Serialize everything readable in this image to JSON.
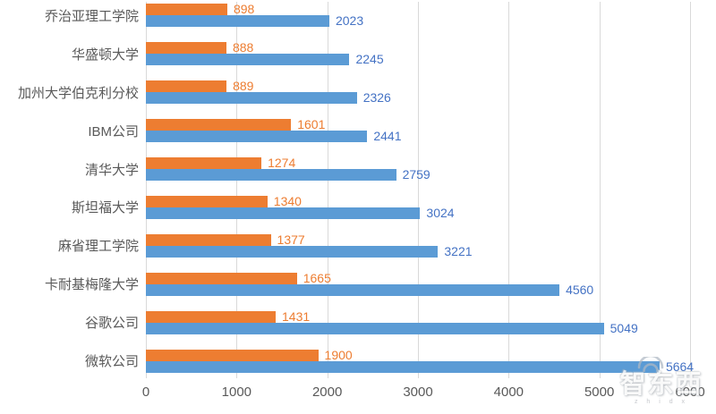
{
  "chart_data": {
    "type": "bar",
    "orientation": "horizontal",
    "title": "",
    "xlabel": "",
    "ylabel": "",
    "xlim": [
      0,
      6000
    ],
    "x_ticks": [
      "0",
      "1000",
      "2000",
      "3000",
      "4000",
      "5000",
      "6000"
    ],
    "grid": "vertical",
    "legend": "none",
    "categories": [
      "乔治亚理工学院",
      "华盛顿大学",
      "加州大学伯克利分校",
      "IBM公司",
      "清华大学",
      "斯坦福大学",
      "麻省理工学院",
      "卡耐基梅隆大学",
      "谷歌公司",
      "微软公司"
    ],
    "series": [
      {
        "name": "orange-series",
        "color": "#ED7D31",
        "label_color": "#ED7D31",
        "values": [
          898,
          888,
          889,
          1601,
          1274,
          1340,
          1377,
          1665,
          1431,
          1900
        ]
      },
      {
        "name": "blue-series",
        "color": "#5B9BD5",
        "label_color": "#4472C4",
        "values": [
          2023,
          2245,
          2326,
          2441,
          2759,
          3024,
          3221,
          4560,
          5049,
          5664
        ]
      }
    ]
  },
  "watermark": {
    "text": "智东西",
    "subtext": "z h i d x"
  },
  "colors": {
    "gridline": "#d9d9d9",
    "axis_text": "#595959"
  }
}
